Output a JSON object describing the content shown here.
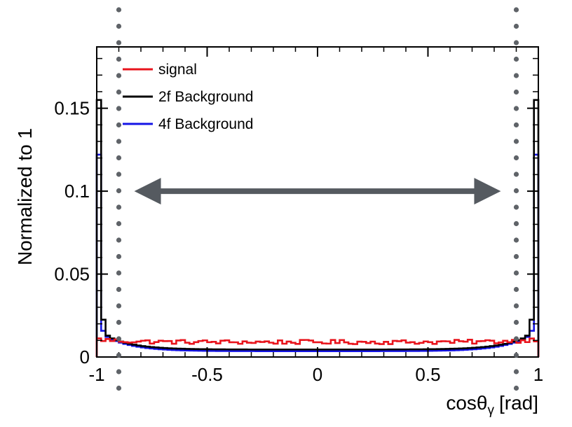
{
  "chart_data": {
    "type": "line",
    "style": "step-histogram",
    "title": "",
    "xlabel": "cosθγ [rad]",
    "xlabel_main": "cosθ",
    "xlabel_sub": "γ",
    "xlabel_unit": "[rad]",
    "ylabel": "Normalized to 1",
    "xlim": [
      -1,
      1
    ],
    "ylim": [
      0,
      0.187
    ],
    "x_ticks": [
      {
        "value": -1,
        "label": "-1"
      },
      {
        "value": -0.5,
        "label": "-0.5"
      },
      {
        "value": 0,
        "label": "0"
      },
      {
        "value": 0.5,
        "label": "0.5"
      },
      {
        "value": 1,
        "label": "1"
      }
    ],
    "y_ticks": [
      {
        "value": 0,
        "label": "0"
      },
      {
        "value": 0.05,
        "label": "0.05"
      },
      {
        "value": 0.1,
        "label": "0.1"
      },
      {
        "value": 0.15,
        "label": "0.15"
      }
    ],
    "bins": 100,
    "legend_position": "top-left",
    "series": [
      {
        "name": "signal",
        "color": "#e8141c",
        "shape": {
          "kind": "flat",
          "base": 0.009,
          "noise": 0.0013,
          "edge": 0.012
        }
      },
      {
        "name": "2f Background",
        "color": "#000000",
        "shape": {
          "kind": "forward-peak",
          "peak": 0.155,
          "floor": 0.0045,
          "width": 0.007,
          "tail": 0.012
        }
      },
      {
        "name": "4f Background",
        "color": "#1414e6",
        "shape": {
          "kind": "forward-peak",
          "peak": 0.122,
          "floor": 0.0035,
          "width": 0.005,
          "tail": 0.013
        }
      }
    ],
    "annotations": [
      {
        "type": "double-arrow",
        "from": -0.83,
        "to": 0.83,
        "y": 0.1,
        "color": "#555a60"
      },
      {
        "type": "vertical-dotted-line",
        "x": -0.9,
        "color": "#5f6368"
      },
      {
        "type": "vertical-dotted-line",
        "x": 0.9,
        "color": "#5f6368"
      }
    ]
  }
}
